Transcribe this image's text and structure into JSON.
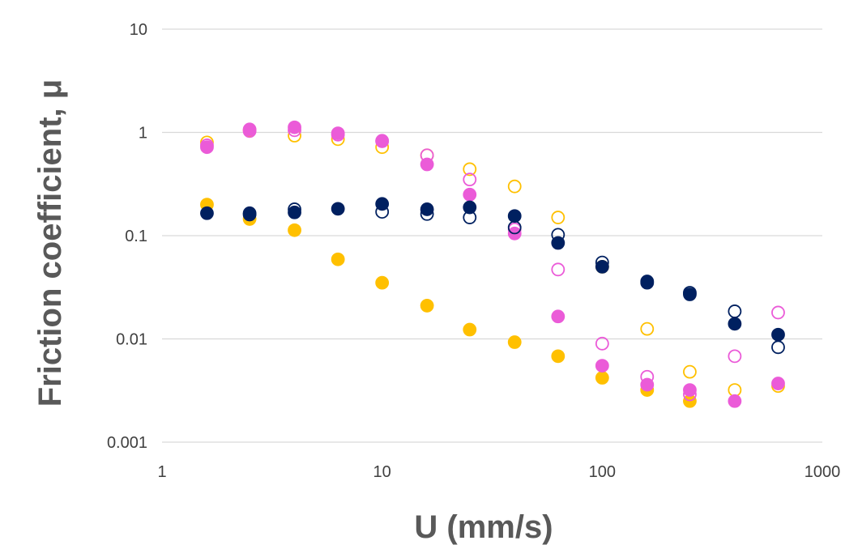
{
  "chart_data": {
    "type": "scatter",
    "title": "",
    "xlabel": "U (mm/s)",
    "ylabel": "Friction coefficient, μ",
    "x_scale": "log",
    "y_scale": "log",
    "xlim": [
      1,
      1000
    ],
    "ylim": [
      0.001,
      10
    ],
    "x_ticks": [
      1,
      10,
      100,
      1000
    ],
    "x_tick_labels": [
      "1",
      "10",
      "100",
      "1000"
    ],
    "y_ticks": [
      0.001,
      0.01,
      0.1,
      1,
      10
    ],
    "y_tick_labels": [
      "0.001",
      "0.01",
      "0.1",
      "1",
      "10"
    ],
    "grid": "horizontal",
    "legend": "none",
    "series": [
      {
        "color": "#FFC000",
        "marker": "open-circle",
        "x": [
          1.6,
          2.5,
          4.0,
          6.3,
          10,
          16,
          25,
          40,
          63,
          100,
          160,
          250,
          400,
          630
        ],
        "y": [
          0.8,
          1.05,
          0.93,
          0.86,
          0.72,
          0.6,
          0.44,
          0.3,
          0.15,
          0.05,
          0.0125,
          0.0048,
          0.0032,
          0.0035
        ]
      },
      {
        "color": "#FFC000",
        "marker": "filled-circle",
        "x": [
          1.6,
          2.5,
          4.0,
          6.3,
          10,
          16,
          25,
          40,
          63,
          100,
          160,
          250
        ],
        "y": [
          0.2,
          0.145,
          0.113,
          0.059,
          0.035,
          0.021,
          0.0123,
          0.0093,
          0.0068,
          0.0042,
          0.0032,
          0.0025
        ]
      },
      {
        "color": "#EB5BD8",
        "marker": "open-circle",
        "x": [
          1.6,
          2.5,
          4.0,
          6.3,
          10,
          16,
          25,
          40,
          63,
          100,
          160,
          250,
          400,
          630
        ],
        "y": [
          0.75,
          1.03,
          1.05,
          0.95,
          0.82,
          0.6,
          0.35,
          0.115,
          0.047,
          0.009,
          0.0043,
          0.0029,
          0.0068,
          0.018
        ]
      },
      {
        "color": "#EB5BD8",
        "marker": "filled-circle",
        "x": [
          1.6,
          2.5,
          4.0,
          6.3,
          10,
          16,
          25,
          40,
          63,
          100,
          160,
          250,
          400,
          630
        ],
        "y": [
          0.72,
          1.07,
          1.12,
          0.98,
          0.83,
          0.49,
          0.25,
          0.105,
          0.0165,
          0.0055,
          0.0036,
          0.0032,
          0.0025,
          0.0037
        ]
      },
      {
        "color": "#002060",
        "marker": "open-circle",
        "x": [
          2.5,
          4.0,
          10,
          16,
          25,
          40,
          63,
          100,
          160,
          250,
          400,
          630
        ],
        "y": [
          0.16,
          0.18,
          0.17,
          0.162,
          0.15,
          0.12,
          0.102,
          0.055,
          0.035,
          0.028,
          0.0185,
          0.0083
        ]
      },
      {
        "color": "#002060",
        "marker": "filled-circle",
        "x": [
          1.6,
          2.5,
          4.0,
          6.3,
          10,
          16,
          25,
          40,
          63,
          100,
          160,
          250,
          400,
          630
        ],
        "y": [
          0.165,
          0.165,
          0.168,
          0.182,
          0.203,
          0.18,
          0.188,
          0.155,
          0.085,
          0.05,
          0.036,
          0.027,
          0.014,
          0.011
        ]
      }
    ]
  }
}
